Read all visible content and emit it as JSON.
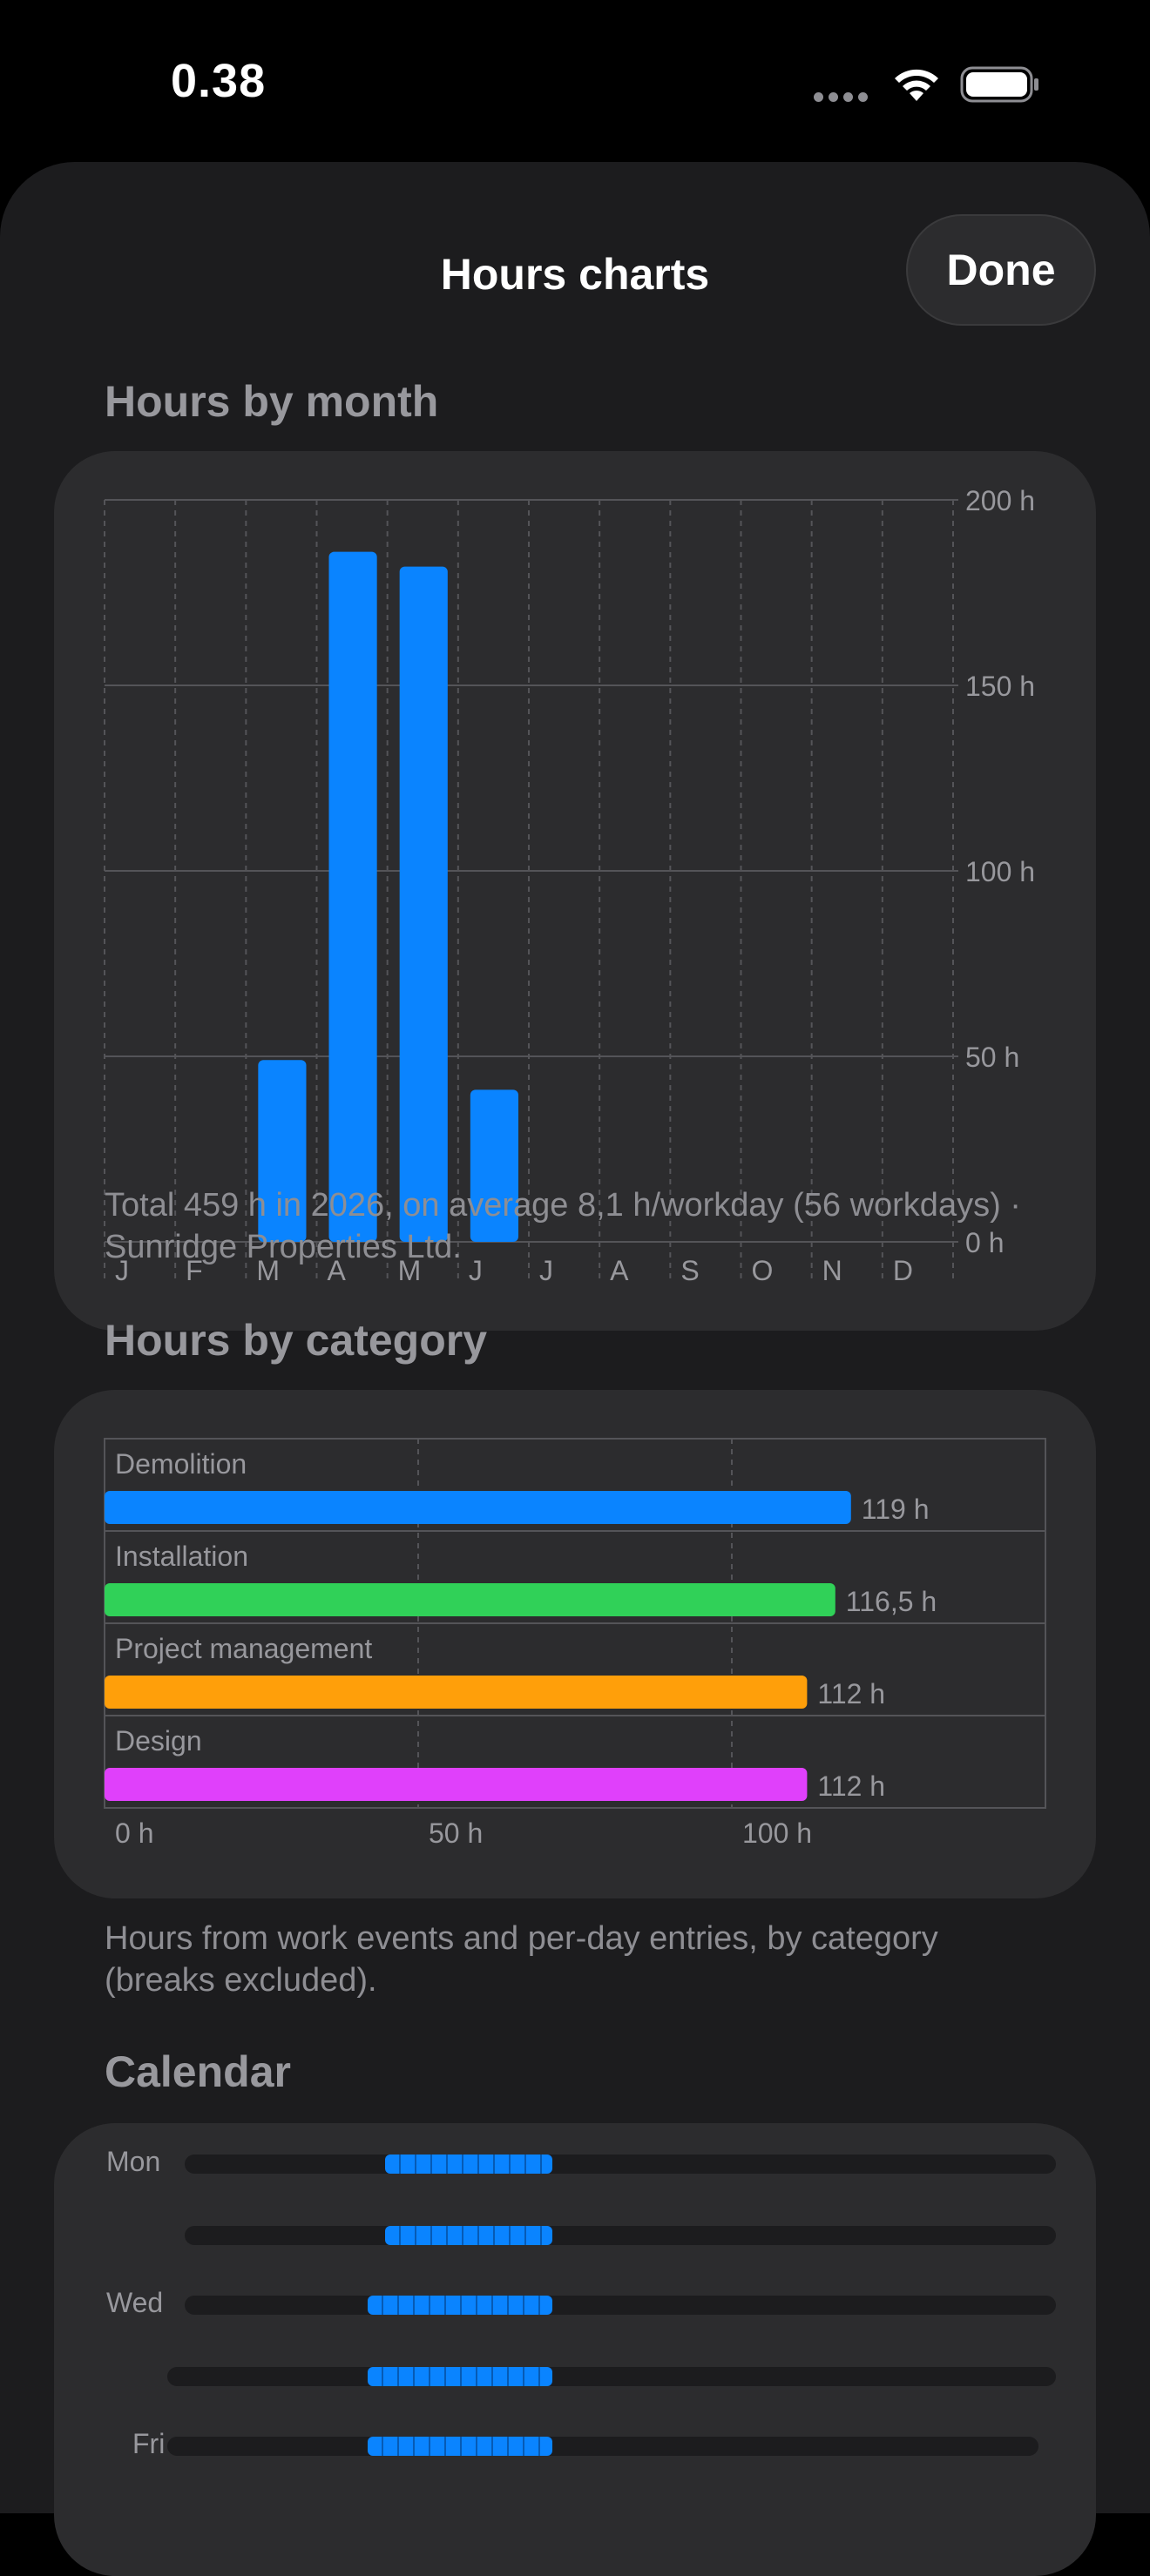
{
  "status_bar": {
    "time": "0.38"
  },
  "header": {
    "title": "Hours charts",
    "done_label": "Done"
  },
  "sections": {
    "month_title": "Hours by month",
    "category_title": "Hours by category",
    "calendar_title": "Calendar"
  },
  "month_caption": "Total 459 h in 2026, on average 8,1 h/workday (56 workdays) · Sunridge Properties Ltd.",
  "category_caption": "Hours from work events and per-day entries, by category (breaks excluded).",
  "colors": {
    "accent": "#0a84ff",
    "green": "#30d158",
    "orange": "#ff9f0a",
    "purple": "#e040fb",
    "background": "#1c1c1e",
    "card": "#2c2c2e"
  },
  "chart_data": [
    {
      "type": "bar",
      "categories": [
        "J",
        "F",
        "M",
        "A",
        "M",
        "J",
        "J",
        "A",
        "S",
        "O",
        "N",
        "D"
      ],
      "values": [
        0,
        0,
        49,
        186,
        182,
        41,
        0,
        0,
        0,
        0,
        0,
        0
      ],
      "ylim": [
        0,
        200
      ],
      "yticks": [
        0,
        50,
        100,
        150,
        200
      ],
      "ytick_labels": [
        "0 h",
        "50 h",
        "100 h",
        "150 h",
        "200 h"
      ],
      "grid": true,
      "color": "#0a84ff"
    },
    {
      "type": "bar",
      "orientation": "horizontal",
      "categories": [
        "Demolition",
        "Installation",
        "Project management",
        "Design"
      ],
      "values": [
        119,
        116.5,
        112,
        112
      ],
      "value_labels": [
        "119 h",
        "116,5 h",
        "112 h",
        "112 h"
      ],
      "colors": [
        "#0a84ff",
        "#30d158",
        "#ff9f0a",
        "#e040fb"
      ],
      "xlim": [
        0,
        150
      ],
      "xticks": [
        0,
        50,
        100
      ],
      "xtick_labels": [
        "0 h",
        "50 h",
        "100 h"
      ],
      "grid": true
    }
  ],
  "calendar": {
    "days": [
      "Mon",
      "",
      "Wed",
      "",
      "Fri"
    ]
  }
}
